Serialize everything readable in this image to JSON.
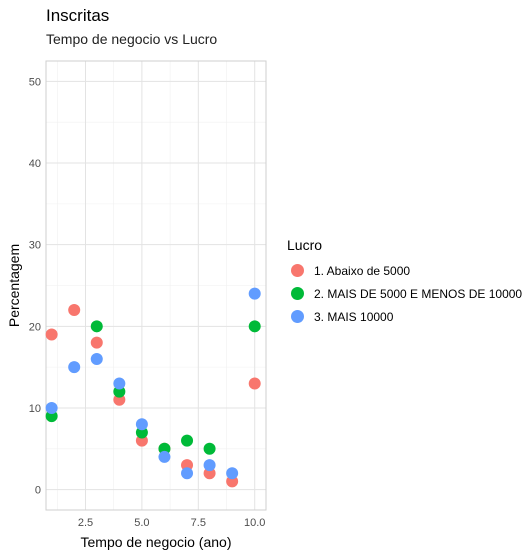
{
  "chart_data": {
    "type": "scatter",
    "title": "Inscritas",
    "subtitle": "Tempo de negocio vs Lucro",
    "xlabel": "Tempo de negocio (ano)",
    "ylabel": "Percentagem",
    "xlim": [
      0.75,
      10.5
    ],
    "ylim": [
      -2.5,
      52.5
    ],
    "x_ticks": [
      2.5,
      5.0,
      7.5,
      10.0
    ],
    "x_tick_labels": [
      "2.5",
      "5.0",
      "7.5",
      "10.0"
    ],
    "y_ticks": [
      0,
      10,
      20,
      30,
      40,
      50
    ],
    "y_tick_labels": [
      "0",
      "10",
      "20",
      "30",
      "40",
      "50"
    ],
    "grid": true,
    "legend_title": "Lucro",
    "legend_position": "right",
    "series": [
      {
        "name": "1. Abaixo de 5000",
        "color": "#F8766D",
        "points": [
          [
            1,
            19
          ],
          [
            2,
            22
          ],
          [
            3,
            18
          ],
          [
            4,
            11
          ],
          [
            5,
            6
          ],
          [
            6,
            5
          ],
          [
            7,
            3
          ],
          [
            8,
            2
          ],
          [
            9,
            1
          ],
          [
            10,
            13
          ]
        ]
      },
      {
        "name": "2. MAIS DE 5000 E MENOS DE 10000",
        "color": "#00BA38",
        "points": [
          [
            1,
            9
          ],
          [
            3,
            20
          ],
          [
            4,
            12
          ],
          [
            5,
            7
          ],
          [
            6,
            5
          ],
          [
            7,
            6
          ],
          [
            8,
            5
          ],
          [
            10,
            20
          ]
        ]
      },
      {
        "name": "3. MAIS 10000",
        "color": "#619CFF",
        "points": [
          [
            1,
            10
          ],
          [
            2,
            15
          ],
          [
            3,
            16
          ],
          [
            4,
            13
          ],
          [
            5,
            8
          ],
          [
            6,
            4
          ],
          [
            7,
            2
          ],
          [
            8,
            3
          ],
          [
            9,
            2
          ],
          [
            10,
            24
          ]
        ]
      }
    ]
  }
}
